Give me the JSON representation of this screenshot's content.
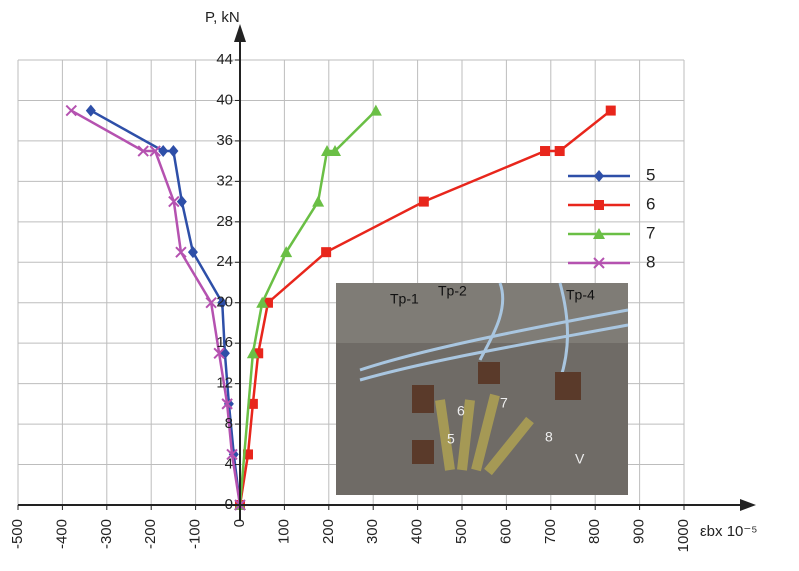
{
  "chart_data": {
    "type": "line",
    "y_label": "P, kN",
    "x_label": "εbx 10⁻⁵",
    "xlim": [
      -500,
      1000
    ],
    "xticks": [
      -500,
      -400,
      -300,
      -200,
      -100,
      0,
      100,
      200,
      300,
      400,
      500,
      600,
      700,
      800,
      900,
      1000
    ],
    "ylim": [
      0,
      44
    ],
    "yticks": [
      0,
      4,
      8,
      12,
      16,
      20,
      24,
      28,
      32,
      36,
      40,
      44
    ],
    "grid": true,
    "legend": "right",
    "series": [
      {
        "name": "5",
        "color": "#2e4fa8",
        "marker": "diamond",
        "x": [
          0,
          -14,
          -25,
          -34,
          -40,
          -106,
          -131,
          -150,
          -173,
          -336
        ],
        "values": [
          0,
          5,
          10,
          15,
          20,
          25,
          30,
          35,
          35,
          39
        ]
      },
      {
        "name": "6",
        "color": "#e8261c",
        "marker": "square",
        "x": [
          0,
          18,
          29,
          41,
          63,
          194,
          414,
          687,
          720,
          835
        ],
        "values": [
          0,
          5,
          10,
          15,
          20,
          25,
          30,
          35,
          35,
          39
        ]
      },
      {
        "name": "7",
        "color": "#6abf45",
        "marker": "triangle",
        "x": [
          0,
          29,
          50,
          104,
          176,
          196,
          214,
          306
        ],
        "values": [
          0,
          15,
          20,
          25,
          30,
          35,
          35,
          39
        ]
      },
      {
        "name": "8",
        "color": "#b552b0",
        "marker": "x",
        "x": [
          0,
          -18,
          -29,
          -47,
          -65,
          -133,
          -149,
          -191,
          -218,
          -380
        ],
        "values": [
          0,
          5,
          10,
          15,
          20,
          25,
          30,
          35,
          35,
          39
        ]
      }
    ],
    "photo_labels": [
      "Tp-1",
      "Tp-2",
      "Tp-4",
      "5",
      "6",
      "7",
      "8",
      "V"
    ]
  }
}
